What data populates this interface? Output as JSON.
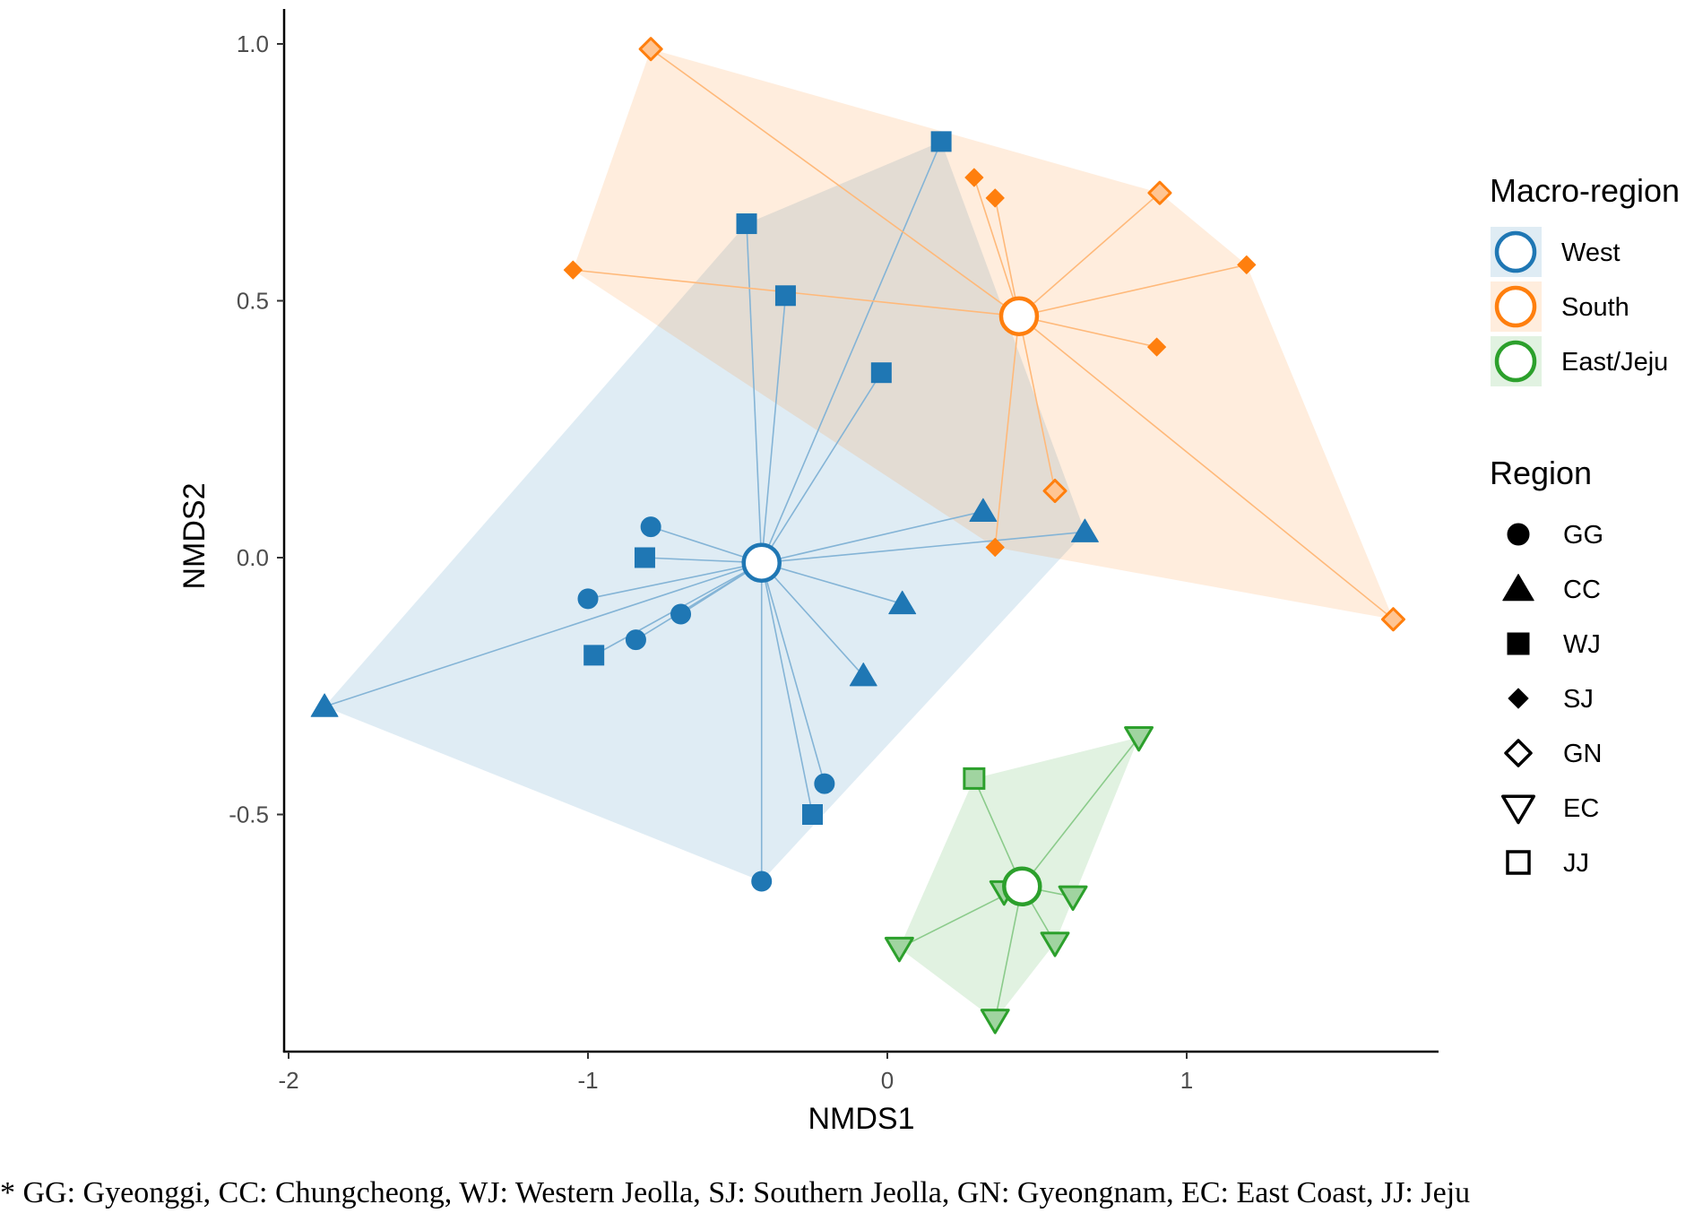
{
  "chart_data": {
    "type": "scatter",
    "xlabel": "NMDS1",
    "ylabel": "NMDS2",
    "xlim": [
      -2.0,
      1.85
    ],
    "ylim": [
      -0.96,
      1.06
    ],
    "x_ticks": [
      -2,
      -1,
      0,
      1
    ],
    "x_tick_labels": [
      "-2",
      "-1",
      "0",
      "1"
    ],
    "y_ticks": [
      -0.5,
      0.0,
      0.5,
      1.0
    ],
    "y_tick_labels": [
      "-0.5",
      "0.0",
      "0.5",
      "1.0"
    ],
    "grid": false,
    "legend": {
      "placement": "right",
      "groups_title": "Macro-region",
      "shapes_title": "Region"
    },
    "groups": [
      {
        "name": "West",
        "label": "West",
        "color": "#1f77b4",
        "centroid": [
          -0.42,
          -0.01
        ]
      },
      {
        "name": "South",
        "label": "South",
        "color": "#ff7f0e",
        "centroid": [
          0.44,
          0.47
        ]
      },
      {
        "name": "East/Jeju",
        "label": "East/Jeju",
        "color": "#2ca02c",
        "centroid": [
          0.45,
          -0.64
        ]
      }
    ],
    "regions": [
      {
        "code": "GG",
        "label": "GG",
        "shape": "circle"
      },
      {
        "code": "CC",
        "label": "CC",
        "shape": "triangle"
      },
      {
        "code": "WJ",
        "label": "WJ",
        "shape": "square"
      },
      {
        "code": "SJ",
        "label": "SJ",
        "shape": "diamond"
      },
      {
        "code": "GN",
        "label": "GN",
        "shape": "diamond-open"
      },
      {
        "code": "EC",
        "label": "EC",
        "shape": "triangle-down-open"
      },
      {
        "code": "JJ",
        "label": "JJ",
        "shape": "square-open"
      }
    ],
    "points": [
      {
        "group": "West",
        "region": "GG",
        "x": -0.79,
        "y": 0.06
      },
      {
        "group": "West",
        "region": "GG",
        "x": -1.0,
        "y": -0.08
      },
      {
        "group": "West",
        "region": "GG",
        "x": -0.84,
        "y": -0.16
      },
      {
        "group": "West",
        "region": "GG",
        "x": -0.69,
        "y": -0.11
      },
      {
        "group": "West",
        "region": "GG",
        "x": -0.21,
        "y": -0.44
      },
      {
        "group": "West",
        "region": "GG",
        "x": -0.42,
        "y": -0.63
      },
      {
        "group": "West",
        "region": "CC",
        "x": -1.88,
        "y": -0.29
      },
      {
        "group": "West",
        "region": "CC",
        "x": 0.05,
        "y": -0.09
      },
      {
        "group": "West",
        "region": "CC",
        "x": -0.08,
        "y": -0.23
      },
      {
        "group": "West",
        "region": "CC",
        "x": 0.32,
        "y": 0.09
      },
      {
        "group": "West",
        "region": "CC",
        "x": 0.66,
        "y": 0.05
      },
      {
        "group": "West",
        "region": "WJ",
        "x": 0.18,
        "y": 0.81
      },
      {
        "group": "West",
        "region": "WJ",
        "x": -0.47,
        "y": 0.65
      },
      {
        "group": "West",
        "region": "WJ",
        "x": -0.34,
        "y": 0.51
      },
      {
        "group": "West",
        "region": "WJ",
        "x": -0.02,
        "y": 0.36
      },
      {
        "group": "West",
        "region": "WJ",
        "x": -0.81,
        "y": 0.0
      },
      {
        "group": "West",
        "region": "WJ",
        "x": -0.98,
        "y": -0.19
      },
      {
        "group": "West",
        "region": "WJ",
        "x": -0.25,
        "y": -0.5
      },
      {
        "group": "South",
        "region": "GN",
        "x": -0.79,
        "y": 0.99
      },
      {
        "group": "South",
        "region": "GN",
        "x": 0.91,
        "y": 0.71
      },
      {
        "group": "South",
        "region": "GN",
        "x": 0.56,
        "y": 0.13
      },
      {
        "group": "South",
        "region": "GN",
        "x": 1.69,
        "y": -0.12
      },
      {
        "group": "South",
        "region": "SJ",
        "x": 0.29,
        "y": 0.74
      },
      {
        "group": "South",
        "region": "SJ",
        "x": 0.36,
        "y": 0.7
      },
      {
        "group": "South",
        "region": "SJ",
        "x": 1.2,
        "y": 0.57
      },
      {
        "group": "South",
        "region": "SJ",
        "x": -1.05,
        "y": 0.56
      },
      {
        "group": "South",
        "region": "SJ",
        "x": 0.9,
        "y": 0.41
      },
      {
        "group": "South",
        "region": "SJ",
        "x": 0.36,
        "y": 0.02
      },
      {
        "group": "East/Jeju",
        "region": "JJ",
        "x": 0.29,
        "y": -0.43
      },
      {
        "group": "East/Jeju",
        "region": "EC",
        "x": 0.84,
        "y": -0.35
      },
      {
        "group": "East/Jeju",
        "region": "EC",
        "x": 0.39,
        "y": -0.65
      },
      {
        "group": "East/Jeju",
        "region": "EC",
        "x": 0.62,
        "y": -0.66
      },
      {
        "group": "East/Jeju",
        "region": "EC",
        "x": 0.04,
        "y": -0.76
      },
      {
        "group": "East/Jeju",
        "region": "EC",
        "x": 0.56,
        "y": -0.75
      },
      {
        "group": "East/Jeju",
        "region": "EC",
        "x": 0.36,
        "y": -0.9
      }
    ]
  },
  "footnote": "* GG: Gyeonggi, CC: Chungcheong, WJ: Western Jeolla, SJ: Southern Jeolla, GN: Gyeongnam, EC: East Coast, JJ: Jeju"
}
